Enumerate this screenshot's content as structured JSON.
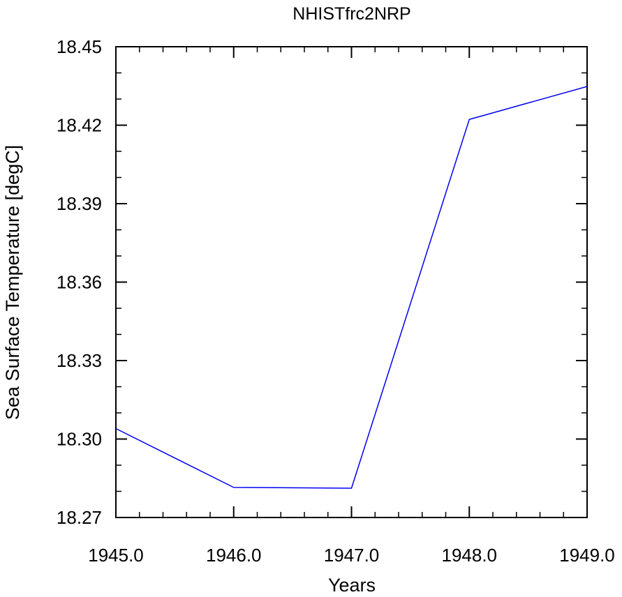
{
  "chart_data": {
    "type": "line",
    "title": "NHISTfrc2NRP",
    "xlabel": "Years",
    "ylabel": "Sea Surface Temperature [degC]",
    "xlim": [
      1945.0,
      1949.0
    ],
    "ylim": [
      18.27,
      18.45
    ],
    "x_ticks": [
      1945.0,
      1946.0,
      1947.0,
      1948.0,
      1949.0
    ],
    "x_tick_labels": [
      "1945.0",
      "1946.0",
      "1947.0",
      "1948.0",
      "1949.0"
    ],
    "y_ticks": [
      18.27,
      18.3,
      18.33,
      18.36,
      18.39,
      18.42,
      18.45
    ],
    "y_tick_labels": [
      "18.27",
      "18.30",
      "18.33",
      "18.36",
      "18.39",
      "18.42",
      "18.45"
    ],
    "grid": false,
    "legend": "none",
    "series": [
      {
        "color": "#0000ee",
        "x": [
          1945.0,
          1946.0,
          1947.0,
          1948.0,
          1949.0
        ],
        "y": [
          18.304,
          18.2815,
          18.2812,
          18.4222,
          18.4348
        ]
      }
    ]
  }
}
